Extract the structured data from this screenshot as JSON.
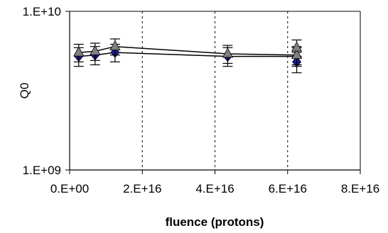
{
  "chart_data": {
    "type": "scatter",
    "title": "",
    "xlabel": "fluence (protons)",
    "ylabel": "Q0",
    "x_scale": "linear",
    "y_scale": "log",
    "xlim": [
      0,
      8e+16
    ],
    "ylim": [
      1000000000.0,
      10000000000.0
    ],
    "x_ticks": [
      0,
      2e+16,
      4e+16,
      6e+16,
      8e+16
    ],
    "x_tick_labels": [
      "0.E+00",
      "2.E+16",
      "4.E+16",
      "6.E+16",
      "8.E+16"
    ],
    "y_ticks": [
      1000000000.0,
      10000000000.0
    ],
    "y_tick_labels": [
      "1.E+09",
      "1.E+10"
    ],
    "vertical_gridlines": "dashed, at x ticks",
    "legend": "none",
    "series": [
      {
        "marker": "diamond",
        "color": "#1a1a8c",
        "line": true,
        "points": [
          {
            "x": 2500000000000000.0,
            "y": 5200000000.0,
            "err": 700000000.0
          },
          {
            "x": 7000000000000000.0,
            "y": 5300000000.0,
            "err": 700000000.0
          },
          {
            "x": 1.25e+16,
            "y": 5500000000.0,
            "err": 700000000.0
          },
          {
            "x": 4.35e+16,
            "y": 5200000000.0,
            "err": 700000000.0
          },
          {
            "x": 6.25e+16,
            "y": 5200000000.0,
            "err": 700000000.0
          },
          {
            "x": 6.25e+16,
            "y": 4800000000.0,
            "err": 700000000.0
          }
        ]
      },
      {
        "marker": "triangle",
        "color": "#808080",
        "line": true,
        "points": [
          {
            "x": 2500000000000000.0,
            "y": 5500000000.0,
            "err": 700000000.0
          },
          {
            "x": 7000000000000000.0,
            "y": 5600000000.0,
            "err": 700000000.0
          },
          {
            "x": 1.25e+16,
            "y": 6000000000.0,
            "err": 700000000.0
          },
          {
            "x": 4.35e+16,
            "y": 5400000000.0,
            "err": 700000000.0
          },
          {
            "x": 6.25e+16,
            "y": 5300000000.0,
            "err": 700000000.0
          },
          {
            "x": 6.25e+16,
            "y": 5900000000.0,
            "err": 700000000.0
          }
        ]
      }
    ]
  }
}
